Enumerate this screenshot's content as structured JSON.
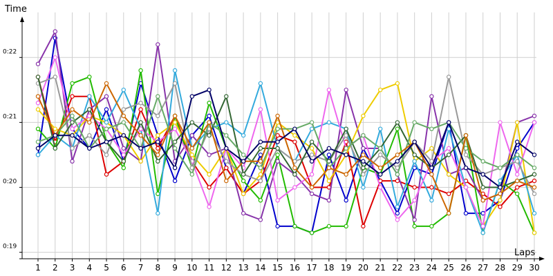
{
  "chart_data": {
    "type": "line",
    "ylabel": "Time",
    "xlabel": "Laps",
    "x": [
      1,
      2,
      3,
      4,
      5,
      6,
      7,
      8,
      9,
      10,
      11,
      12,
      13,
      14,
      15,
      16,
      17,
      18,
      19,
      20,
      21,
      22,
      23,
      24,
      25,
      26,
      27,
      28,
      29,
      30
    ],
    "y_ticks": [
      {
        "value": 19,
        "label": "0:19"
      },
      {
        "value": 20,
        "label": "0:20"
      },
      {
        "value": 21,
        "label": "0:21"
      },
      {
        "value": 22,
        "label": "0:22"
      }
    ],
    "ylim": [
      18.9,
      22.8
    ],
    "grid": "vertical and horizontal gray lines",
    "legend": "none",
    "series": [
      {
        "color": "#0000cc",
        "values": [
          20.5,
          22.3,
          20.9,
          20.6,
          21.2,
          20.4,
          21.6,
          20.8,
          20.1,
          20.8,
          21.1,
          20.3,
          19.9,
          20.5,
          19.4,
          19.4,
          19.3,
          20.5,
          19.8,
          20.6,
          20.1,
          19.6,
          20.3,
          20.2,
          21.0,
          19.6,
          19.6,
          19.8,
          20.6,
          21.0
        ]
      },
      {
        "color": "#dd0000",
        "values": [
          21.7,
          20.7,
          21.4,
          21.4,
          20.2,
          20.4,
          21.2,
          20.6,
          21.1,
          20.4,
          20.0,
          20.3,
          19.9,
          20.1,
          20.8,
          20.7,
          20.0,
          20.0,
          20.7,
          19.4,
          20.1,
          20.1,
          20.0,
          20.0,
          19.9,
          20.1,
          19.9,
          19.7,
          20.0,
          20.1
        ]
      },
      {
        "color": "#22bb00",
        "values": [
          20.9,
          20.6,
          21.6,
          21.7,
          20.7,
          20.3,
          21.8,
          19.9,
          21.1,
          20.3,
          21.3,
          20.6,
          20.1,
          19.8,
          20.5,
          19.4,
          19.3,
          19.4,
          19.4,
          20.3,
          20.2,
          20.9,
          19.4,
          19.4,
          19.6,
          20.8,
          19.3,
          20.1,
          19.9,
          19.3
        ]
      },
      {
        "color": "#8833aa",
        "values": [
          21.9,
          22.4,
          20.4,
          21.2,
          21.4,
          20.6,
          20.4,
          22.2,
          20.4,
          20.8,
          20.5,
          20.6,
          19.6,
          19.5,
          20.4,
          20.2,
          19.9,
          19.8,
          21.5,
          20.6,
          20.6,
          20.2,
          19.5,
          21.4,
          20.2,
          20.3,
          19.8,
          19.9,
          21.0,
          21.1
        ]
      },
      {
        "color": "#eecc00",
        "values": [
          21.2,
          20.9,
          20.8,
          21.1,
          21.0,
          20.8,
          20.4,
          20.8,
          21.0,
          20.5,
          20.2,
          20.6,
          19.9,
          20.2,
          21.0,
          20.8,
          20.6,
          20.1,
          20.5,
          21.1,
          21.5,
          21.6,
          20.4,
          20.6,
          20.2,
          20.0,
          19.4,
          19.8,
          21.0,
          19.3
        ]
      },
      {
        "color": "#33aadd",
        "values": [
          20.5,
          20.8,
          20.6,
          21.4,
          21.0,
          21.5,
          20.9,
          19.6,
          21.8,
          20.6,
          20.9,
          21.0,
          20.8,
          21.6,
          20.6,
          20.4,
          20.9,
          21.0,
          20.9,
          20.0,
          20.9,
          19.7,
          20.4,
          19.8,
          20.9,
          20.0,
          19.3,
          20.1,
          20.5,
          19.6
        ]
      },
      {
        "color": "#ee66ee",
        "values": [
          21.3,
          22.0,
          20.9,
          21.1,
          20.9,
          20.5,
          20.9,
          20.7,
          20.9,
          20.4,
          19.7,
          20.6,
          20.3,
          21.2,
          19.8,
          20.0,
          20.2,
          21.5,
          20.6,
          20.8,
          20.0,
          19.5,
          19.8,
          20.4,
          20.6,
          20.0,
          19.4,
          21.0,
          20.2,
          21.0
        ]
      },
      {
        "color": "#999999",
        "values": [
          21.6,
          21.7,
          20.6,
          20.8,
          20.5,
          21.2,
          21.3,
          21.1,
          21.6,
          20.3,
          20.9,
          20.4,
          20.2,
          20.1,
          20.6,
          20.4,
          20.5,
          20.4,
          20.8,
          20.2,
          20.5,
          20.3,
          20.7,
          20.4,
          21.7,
          20.5,
          20.2,
          20.3,
          20.4,
          19.9
        ]
      },
      {
        "color": "#336633",
        "values": [
          21.7,
          20.6,
          21.0,
          21.2,
          20.7,
          20.4,
          21.0,
          20.4,
          20.7,
          21.0,
          20.8,
          21.4,
          20.2,
          20.6,
          20.6,
          20.2,
          20.7,
          20.4,
          20.9,
          20.3,
          20.6,
          21.0,
          20.5,
          20.3,
          20.5,
          20.8,
          20.0,
          20.0,
          20.1,
          20.2
        ]
      },
      {
        "color": "#66aa66",
        "values": [
          20.7,
          20.8,
          21.1,
          20.6,
          20.9,
          21.0,
          20.6,
          21.4,
          20.6,
          20.2,
          21.0,
          20.8,
          20.5,
          20.3,
          20.9,
          20.9,
          21.0,
          20.3,
          20.6,
          20.8,
          20.6,
          20.2,
          21.0,
          20.9,
          21.0,
          20.6,
          20.4,
          20.3,
          20.5,
          20.3
        ]
      },
      {
        "color": "#cc6600",
        "values": [
          21.4,
          20.8,
          21.2,
          21.0,
          21.6,
          21.1,
          20.8,
          20.5,
          21.1,
          20.6,
          21.0,
          20.1,
          20.4,
          20.4,
          21.1,
          20.3,
          20.0,
          20.3,
          20.2,
          20.5,
          20.3,
          20.5,
          20.7,
          20.2,
          19.6,
          20.8,
          19.8,
          19.9,
          20.1,
          20.0
        ]
      },
      {
        "color": "#000066",
        "values": [
          20.6,
          20.8,
          20.8,
          20.6,
          20.7,
          20.8,
          20.6,
          20.7,
          20.3,
          21.4,
          21.5,
          20.6,
          20.4,
          20.7,
          20.7,
          20.9,
          20.4,
          20.6,
          20.5,
          20.4,
          20.2,
          20.4,
          20.7,
          20.3,
          21.0,
          20.3,
          20.2,
          20.0,
          20.7,
          20.5
        ]
      }
    ]
  }
}
